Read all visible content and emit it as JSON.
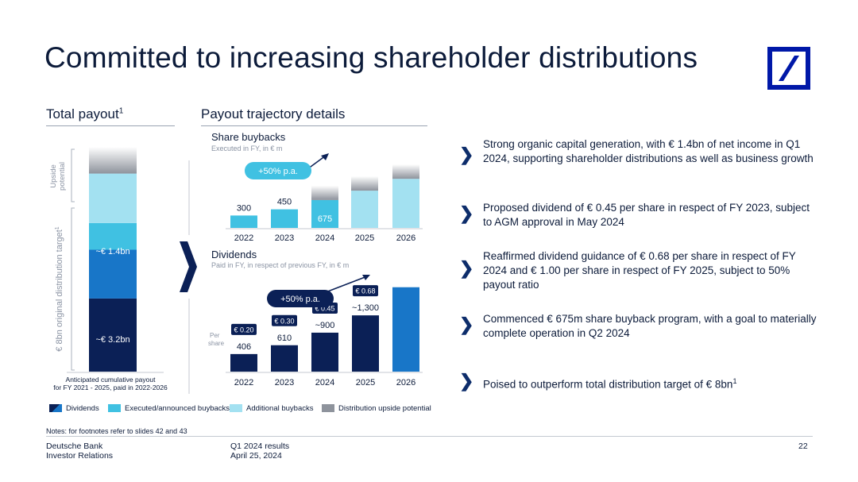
{
  "title": "Committed to increasing shareholder distributions",
  "total_payout": {
    "heading": "Total payout",
    "heading_sup": "1",
    "upside_label": "Upside potential",
    "target_label": "€ 8bn original distribution target",
    "target_label_sup": "1",
    "buyback_label": "~€ 1.4bn",
    "dividend_label": "~€ 3.2bn",
    "footnote_line1": "Anticipated cumulative payout",
    "footnote_line2": "for FY 2021 - 2025, paid in 2022-2026"
  },
  "trajectory": {
    "heading": "Payout trajectory details",
    "buybacks": {
      "title": "Share buybacks",
      "note": "Executed in FY, in € m",
      "growth": "+50% p.a."
    },
    "dividends": {
      "title": "Dividends",
      "note": "Paid in FY, in respect of previous FY, in € m",
      "growth": "+50% p.a.",
      "per_share_label": "Per share"
    }
  },
  "legend": {
    "dividends": "Dividends",
    "executed": "Executed/announced buybacks",
    "additional": "Additional buybacks",
    "upside": "Distribution upside potential"
  },
  "bullets": [
    {
      "text": "Strong organic capital generation, with € 1.4bn of net income in Q1 2024, supporting shareholder distributions as well as business growth"
    },
    {
      "text": "Proposed dividend of € 0.45 per share in respect of FY 2023, subject to AGM approval in May 2024"
    },
    {
      "text": "Reaffirmed dividend guidance of € 0.68 per share in respect of FY 2024 and € 1.00 per share in respect of FY 2025, subject to 50% payout ratio"
    },
    {
      "text": "Commenced € 675m share buyback program, with a goal to materially complete operation in Q2 2024"
    },
    {
      "text": "Poised to outperform total distribution target of € 8bn",
      "sup": "1"
    }
  ],
  "footer": {
    "notes": "Notes: for footnotes refer to slides 42 and 43",
    "company_line1": "Deutsche Bank",
    "company_line2": "Investor Relations",
    "report_line1": "Q1 2024 results",
    "report_line2": "April 25, 2024",
    "page": "22"
  },
  "colors": {
    "navy": "#0b2056",
    "blue": "#1876c8",
    "cyan": "#40c1e2",
    "light": "#a3e1f1",
    "grey": "#8e939c",
    "accent": "#0018a8"
  },
  "chart_data": [
    {
      "type": "bar",
      "title": "Total payout",
      "stacked": true,
      "categories": [
        "Total"
      ],
      "series": [
        {
          "name": "Dividends",
          "values": [
            3.2
          ]
        },
        {
          "name": "Executed/announced buybacks",
          "values": [
            1.4
          ]
        },
        {
          "name": "Additional buybacks",
          "values": [
            1.0
          ]
        },
        {
          "name": "Distribution upside potential",
          "values": [
            0.7
          ]
        }
      ],
      "data_labels": [
        "~€ 3.2bn",
        "~€ 1.4bn"
      ]
    },
    {
      "type": "bar",
      "title": "Share buybacks",
      "subtitle": "Executed in FY, in € m",
      "categories": [
        "2022",
        "2023",
        "2024",
        "2025",
        "2026"
      ],
      "series": [
        {
          "name": "Executed/announced buybacks",
          "values": [
            300,
            450,
            675,
            null,
            null
          ]
        },
        {
          "name": "Additional buybacks",
          "values": [
            0,
            0,
            0,
            1100,
            1450
          ]
        },
        {
          "name": "Distribution upside potential",
          "values": [
            0,
            0,
            350,
            350,
            350
          ]
        }
      ],
      "data_labels": [
        "300",
        "450",
        "675",
        "",
        ""
      ],
      "annotation": "+50% p.a.",
      "ylim": [
        0,
        2000
      ]
    },
    {
      "type": "bar",
      "title": "Dividends",
      "subtitle": "Paid in FY, in respect of previous FY, in € m",
      "categories": [
        "2022",
        "2023",
        "2024",
        "2025",
        "2026"
      ],
      "series": [
        {
          "name": "Dividends",
          "values": [
            406,
            610,
            900,
            1300,
            null
          ]
        },
        {
          "name": "Executed/announced buybacks",
          "values": [
            0,
            0,
            0,
            0,
            1950
          ]
        }
      ],
      "data_labels": [
        "406",
        "610",
        "~900",
        "~1,300",
        ""
      ],
      "per_share": [
        "€ 0.20",
        "€ 0.30",
        "€ 0.45",
        "€ 0.68",
        ""
      ],
      "annotation": "+50% p.a.",
      "ylim": [
        0,
        2200
      ]
    }
  ]
}
